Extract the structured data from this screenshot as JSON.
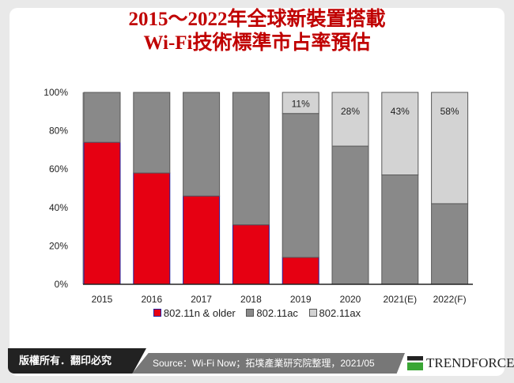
{
  "title_lines": [
    "2015～2022年全球新裝置搭載",
    "Wi-Fi技術標準市占率預估"
  ],
  "chart_data": {
    "type": "bar",
    "stacked": true,
    "categories": [
      "2015",
      "2016",
      "2017",
      "2018",
      "2019",
      "2020",
      "2021(E)",
      "2022(F)"
    ],
    "series": [
      {
        "name": "802.11n & older",
        "color": "#e60012",
        "values": [
          74,
          58,
          46,
          31,
          14,
          0,
          0,
          0
        ]
      },
      {
        "name": "802.11ac",
        "color": "#898989",
        "values": [
          26,
          42,
          54,
          69,
          75,
          72,
          57,
          42
        ]
      },
      {
        "name": "802.11ax",
        "color": "#d3d3d3",
        "values": [
          0,
          0,
          0,
          0,
          11,
          28,
          43,
          58
        ]
      }
    ],
    "data_labels": {
      "802.11ax": [
        "",
        "",
        "",
        "",
        "11%",
        "28%",
        "43%",
        "58%"
      ]
    },
    "yticks": [
      "0%",
      "20%",
      "40%",
      "60%",
      "80%",
      "100%"
    ],
    "ylim": [
      0,
      100
    ],
    "legend": "bottom",
    "grid": false
  },
  "footer": {
    "copyright": "版權所有．翻印必究",
    "source": "Source：Wi-Fi Now；拓墣產業研究院整理，2021/05",
    "logo": "TRENDFORCE"
  }
}
